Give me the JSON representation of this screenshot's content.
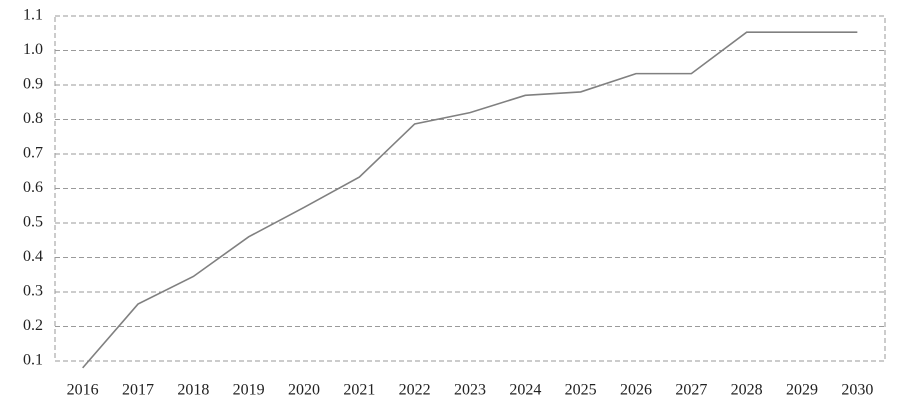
{
  "chart_data": {
    "type": "line",
    "categories": [
      "2016",
      "2017",
      "2018",
      "2019",
      "2020",
      "2021",
      "2022",
      "2023",
      "2024",
      "2025",
      "2026",
      "2027",
      "2028",
      "2029",
      "2030"
    ],
    "values": [
      0.08,
      0.265,
      0.345,
      0.46,
      0.545,
      0.633,
      0.787,
      0.82,
      0.87,
      0.88,
      0.933,
      0.933,
      1.053,
      1.053,
      1.053
    ],
    "color": "#808080",
    "ylim": [
      0.1,
      1.1
    ],
    "yticks": [
      0.1,
      0.2,
      0.3,
      0.4,
      0.5,
      0.6,
      0.7,
      0.8,
      0.9,
      {
        "value": 1,
        "label": "1.0"
      },
      1.1
    ],
    "grid": true
  }
}
